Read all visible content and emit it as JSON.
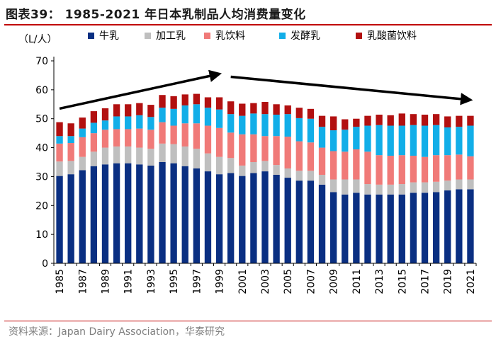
{
  "page": {
    "title": "图表39：  1985-2021 年日本乳制品人均消费量变化",
    "source": "资料来源：Japan Dairy Association，华泰研究"
  },
  "chart_data": {
    "type": "stacked-bar",
    "unit_label": "（L/人）",
    "ylim": [
      0,
      70
    ],
    "yticks": [
      0,
      10,
      20,
      30,
      40,
      50,
      60,
      70
    ],
    "grid": false,
    "legend_position": "top",
    "categories": [
      "1985",
      "1986",
      "1987",
      "1988",
      "1989",
      "1990",
      "1991",
      "1992",
      "1993",
      "1994",
      "1995",
      "1996",
      "1997",
      "1998",
      "1999",
      "2000",
      "2001",
      "2002",
      "2003",
      "2004",
      "2005",
      "2006",
      "2007",
      "2008",
      "2009",
      "2010",
      "2011",
      "2012",
      "2013",
      "2014",
      "2015",
      "2016",
      "2017",
      "2018",
      "2019",
      "2020",
      "2021"
    ],
    "xtick_labels": [
      "1985",
      "1987",
      "1989",
      "1991",
      "1993",
      "1995",
      "1997",
      "1999",
      "2001",
      "2003",
      "2005",
      "2007",
      "2009",
      "2011",
      "2013",
      "2015",
      "2017",
      "2019",
      "2021"
    ],
    "series": [
      {
        "name": "牛乳",
        "color": "#0a2f82",
        "values": [
          30.2,
          30.8,
          32.2,
          33.6,
          34.2,
          34.6,
          34.6,
          34.2,
          33.8,
          35.0,
          34.6,
          33.6,
          32.8,
          31.8,
          30.8,
          31.2,
          30.2,
          31.2,
          31.8,
          30.6,
          29.6,
          28.6,
          28.6,
          27.2,
          24.6,
          23.8,
          24.4,
          23.8,
          23.8,
          23.8,
          23.8,
          24.4,
          24.4,
          24.6,
          25.2,
          25.6,
          25.6
        ]
      },
      {
        "name": "加工乳",
        "color": "#bfbfbf",
        "values": [
          5.0,
          4.6,
          4.6,
          5.0,
          5.8,
          5.8,
          5.8,
          5.8,
          5.8,
          6.4,
          6.6,
          6.8,
          6.8,
          6.2,
          6.0,
          5.2,
          3.6,
          3.8,
          3.6,
          3.4,
          3.2,
          3.4,
          3.4,
          3.4,
          4.4,
          5.2,
          4.6,
          3.6,
          3.4,
          3.4,
          3.6,
          3.6,
          3.6,
          3.6,
          3.4,
          3.4,
          3.4
        ]
      },
      {
        "name": "乳饮料",
        "color": "#f07a78",
        "values": [
          6.2,
          6.2,
          6.8,
          6.4,
          6.2,
          6.0,
          6.0,
          6.6,
          6.6,
          7.4,
          6.4,
          8.0,
          8.8,
          9.6,
          10.0,
          8.8,
          10.8,
          9.6,
          8.6,
          10.0,
          11.0,
          10.2,
          9.8,
          9.4,
          9.8,
          9.6,
          10.4,
          11.2,
          10.2,
          10.0,
          10.0,
          9.2,
          8.8,
          9.2,
          8.8,
          8.6,
          8.0
        ]
      },
      {
        "name": "发酵乳",
        "color": "#12aee8",
        "values": [
          2.6,
          2.4,
          3.0,
          3.6,
          3.2,
          4.4,
          4.4,
          4.6,
          4.4,
          5.0,
          5.8,
          6.2,
          6.6,
          6.2,
          6.4,
          6.4,
          6.4,
          7.2,
          7.6,
          7.4,
          7.8,
          8.0,
          8.2,
          7.2,
          7.2,
          7.6,
          7.8,
          9.0,
          10.4,
          10.4,
          10.2,
          10.6,
          10.8,
          10.4,
          9.6,
          9.6,
          10.6
        ]
      },
      {
        "name": "乳酸菌饮料",
        "color": "#b21010",
        "values": [
          4.8,
          4.4,
          3.8,
          4.0,
          4.2,
          4.2,
          4.2,
          4.2,
          4.2,
          4.4,
          4.4,
          3.8,
          3.6,
          3.6,
          4.2,
          4.4,
          4.2,
          3.6,
          4.2,
          3.6,
          3.0,
          3.6,
          3.4,
          3.8,
          4.8,
          3.6,
          2.8,
          3.4,
          3.6,
          3.6,
          4.2,
          3.8,
          3.8,
          3.8,
          3.8,
          3.8,
          3.4
        ]
      }
    ],
    "annotations": [
      {
        "type": "arrow",
        "from": [
          "1985",
          53.5
        ],
        "to": [
          "1999",
          65.5
        ]
      },
      {
        "type": "arrow",
        "from": [
          "2000",
          64.5
        ],
        "to": [
          "2021",
          56.5
        ]
      }
    ]
  }
}
